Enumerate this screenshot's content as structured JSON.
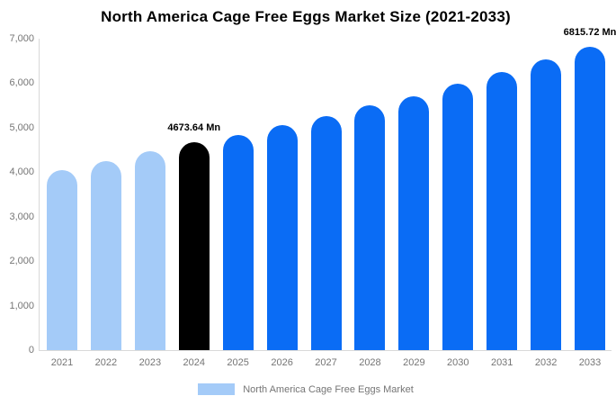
{
  "title": "North America Cage Free Eggs Market Size (2021-2033)",
  "legend": {
    "label": "North America Cage Free Eggs Market",
    "swatch_color": "#a4cbf8"
  },
  "colors": {
    "past": "#a4cbf8",
    "current": "#000000",
    "forecast": "#0a6cf5",
    "axis": "#d9d9d9",
    "tick_text": "#757575",
    "title_text": "#000000"
  },
  "chart_data": {
    "type": "bar",
    "title": "North America Cage Free Eggs Market Size (2021-2033)",
    "categories": [
      "2021",
      "2022",
      "2023",
      "2024",
      "2025",
      "2026",
      "2027",
      "2028",
      "2029",
      "2030",
      "2031",
      "2032",
      "2033"
    ],
    "values": [
      4040,
      4250,
      4480,
      4673.64,
      4830,
      5050,
      5270,
      5500,
      5710,
      5980,
      6250,
      6530,
      6815.72
    ],
    "bar_color_keys": [
      "past",
      "past",
      "past",
      "current",
      "forecast",
      "forecast",
      "forecast",
      "forecast",
      "forecast",
      "forecast",
      "forecast",
      "forecast",
      "forecast"
    ],
    "unit": "Mn",
    "xlabel": "",
    "ylabel": "",
    "ylim": [
      0,
      7000
    ],
    "y_ticks": [
      "0",
      "1,000",
      "2,000",
      "3,000",
      "4,000",
      "5,000",
      "6,000",
      "7,000"
    ],
    "y_tick_values": [
      0,
      1000,
      2000,
      3000,
      4000,
      5000,
      6000,
      7000
    ],
    "grid": false,
    "legend_position": "bottom",
    "annotations": [
      {
        "category": "2024",
        "text": "4673.64 Mn"
      },
      {
        "category": "2033",
        "text": "6815.72 Mn"
      }
    ]
  }
}
